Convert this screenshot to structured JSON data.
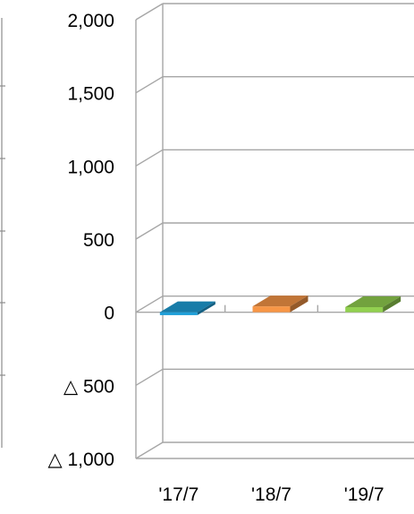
{
  "chart_data": {
    "type": "bar",
    "style": "3d-column",
    "categories": [
      "'17/7",
      "'18/7",
      "'19/7"
    ],
    "values": [
      -20,
      40,
      35
    ],
    "colors": [
      "#1f9fd8",
      "#f79646",
      "#92d050"
    ],
    "ylim": [
      -1000,
      2000
    ],
    "yticks": [
      2000,
      1500,
      1000,
      500,
      0,
      -500,
      -1000
    ],
    "ytick_labels": [
      "2,000",
      "1,500",
      "1,000",
      "500",
      "0",
      "△ 500",
      "△ 1,000"
    ],
    "grid": true,
    "legend": "none"
  }
}
